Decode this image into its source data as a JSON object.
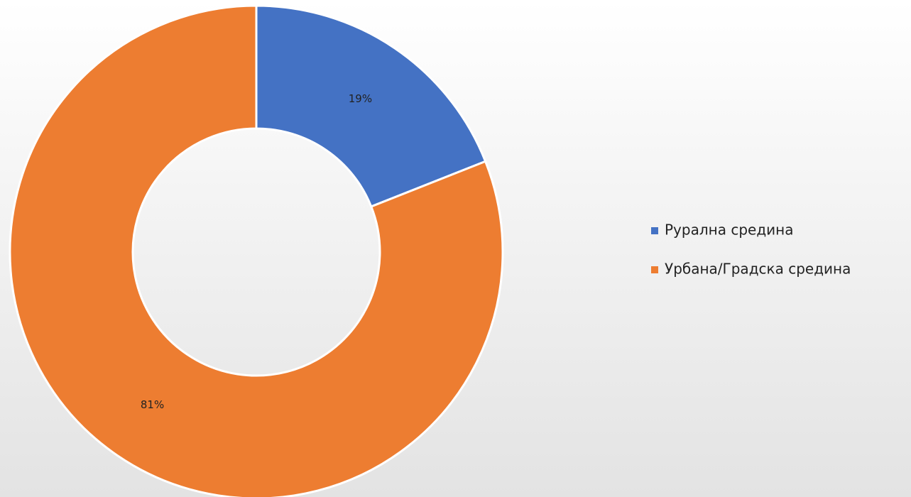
{
  "chart_data": {
    "type": "donut",
    "categories": [
      "Рурална средина",
      "Урбана/Градска средина"
    ],
    "values": [
      19,
      81
    ],
    "value_labels": [
      "19%",
      "81%"
    ],
    "colors": [
      "#4472c4",
      "#ed7d31"
    ],
    "legend": "right"
  }
}
